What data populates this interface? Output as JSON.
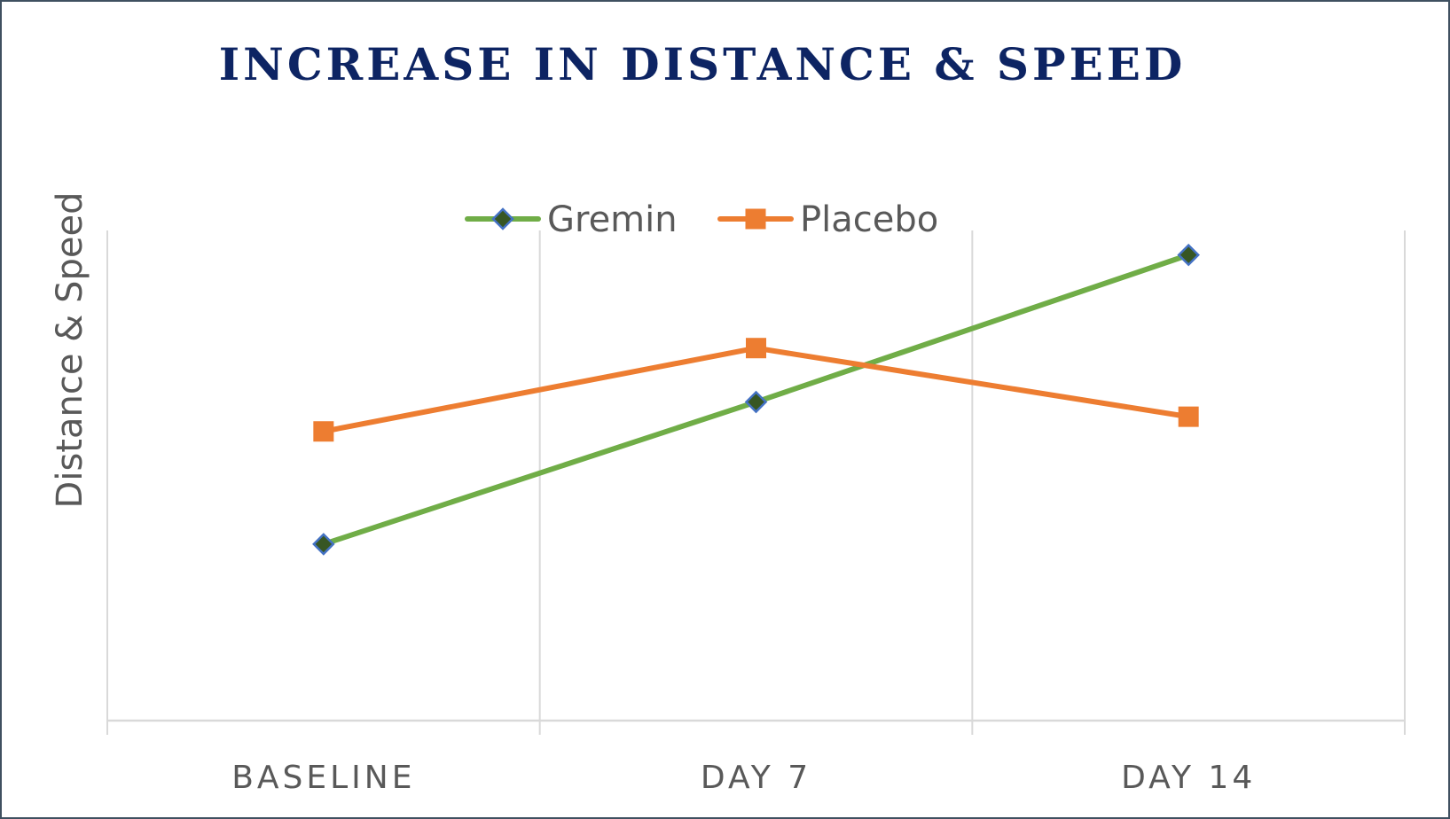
{
  "colors": {
    "title": "#0d2463",
    "text": "#595959",
    "grid": "#d9d9d9",
    "border": "#3f5060"
  },
  "chart_data": {
    "type": "line",
    "title": "INCREASE IN DISTANCE & SPEED",
    "xlabel": "",
    "ylabel": "Distance & Speed",
    "categories": [
      "BASELINE",
      "DAY 7",
      "DAY 14"
    ],
    "ylim": [
      0,
      100
    ],
    "y_ticks_shown": false,
    "grid": "vertical",
    "legend_position": "top-center",
    "series": [
      {
        "name": "Gremin",
        "values": [
          36,
          65,
          95
        ],
        "color": "#70ad47",
        "marker": "diamond",
        "marker_fill": "#375623",
        "marker_edge": "#4472c4"
      },
      {
        "name": "Placebo",
        "values": [
          59,
          76,
          62
        ],
        "color": "#ed7d31",
        "marker": "square",
        "marker_fill": "#ed7d31",
        "marker_edge": "#ed7d31"
      }
    ]
  }
}
